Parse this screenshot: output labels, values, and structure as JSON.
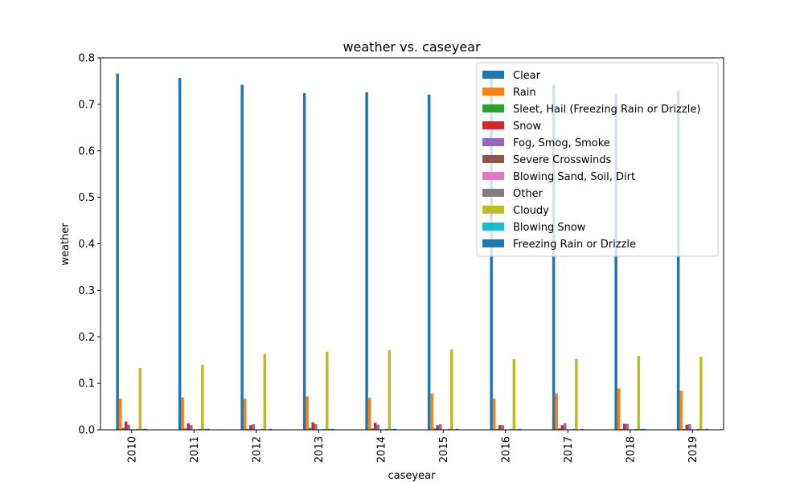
{
  "chart_data": {
    "type": "bar",
    "title": "weather vs. caseyear",
    "xlabel": "caseyear",
    "ylabel": "weather",
    "ylim": [
      0,
      0.8
    ],
    "yticks": [
      "0.0",
      "0.1",
      "0.2",
      "0.3",
      "0.4",
      "0.5",
      "0.6",
      "0.7",
      "0.8"
    ],
    "legend_position": "top-right",
    "categories": [
      "2010",
      "2011",
      "2012",
      "2013",
      "2014",
      "2015",
      "2016",
      "2017",
      "2018",
      "2019"
    ],
    "series": [
      {
        "name": "Clear",
        "color": "#1f77b4",
        "values": [
          0.766,
          0.757,
          0.742,
          0.724,
          0.726,
          0.721,
          0.756,
          0.742,
          0.722,
          0.729
        ]
      },
      {
        "name": "Rain",
        "color": "#ff7f0e",
        "values": [
          0.067,
          0.07,
          0.067,
          0.072,
          0.069,
          0.078,
          0.067,
          0.078,
          0.089,
          0.084
        ]
      },
      {
        "name": "Sleet, Hail (Freezing Rain or Drizzle)",
        "color": "#2ca02c",
        "values": [
          0.004,
          0.003,
          0.002,
          0.004,
          0.003,
          0.003,
          0.002,
          0.003,
          0.002,
          0.002
        ]
      },
      {
        "name": "Snow",
        "color": "#d62728",
        "values": [
          0.018,
          0.014,
          0.01,
          0.016,
          0.015,
          0.01,
          0.01,
          0.01,
          0.013,
          0.011
        ]
      },
      {
        "name": "Fog, Smog, Smoke",
        "color": "#9467bd",
        "values": [
          0.011,
          0.01,
          0.012,
          0.012,
          0.011,
          0.012,
          0.01,
          0.014,
          0.013,
          0.012
        ]
      },
      {
        "name": "Severe Crosswinds",
        "color": "#8c564b",
        "values": [
          0.001,
          0.001,
          0.001,
          0.001,
          0.001,
          0.001,
          0.001,
          0.001,
          0.001,
          0.001
        ]
      },
      {
        "name": "Blowing Sand, Soil, Dirt",
        "color": "#e377c2",
        "values": [
          0.001,
          0.001,
          0.001,
          0.001,
          0.001,
          0.001,
          0.001,
          0.001,
          0.001,
          0.001
        ]
      },
      {
        "name": "Other",
        "color": "#7f7f7f",
        "values": [
          0.002,
          0.002,
          0.002,
          0.002,
          0.002,
          0.002,
          0.002,
          0.002,
          0.002,
          0.002
        ]
      },
      {
        "name": "Cloudy",
        "color": "#bcbd22",
        "values": [
          0.133,
          0.14,
          0.163,
          0.168,
          0.171,
          0.173,
          0.152,
          0.152,
          0.159,
          0.157
        ]
      },
      {
        "name": "Blowing Snow",
        "color": "#17becf",
        "values": [
          0.002,
          0.002,
          0.001,
          0.002,
          0.002,
          0.001,
          0.001,
          0.001,
          0.002,
          0.001
        ]
      },
      {
        "name": "Freezing Rain or Drizzle",
        "color": "#1f77b4",
        "values": [
          0.002,
          0.002,
          0.002,
          0.002,
          0.002,
          0.002,
          0.002,
          0.002,
          0.002,
          0.002
        ]
      }
    ]
  }
}
